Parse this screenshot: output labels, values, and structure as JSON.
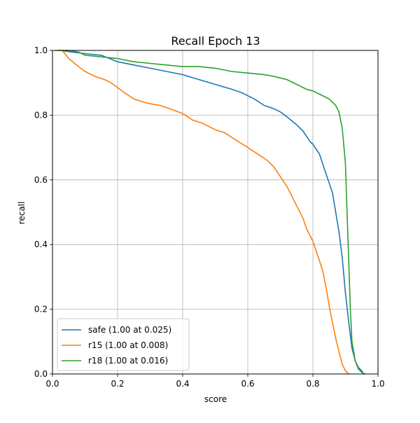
{
  "chart_data": {
    "type": "line",
    "title": "Recall Epoch 13",
    "xlabel": "score",
    "ylabel": "recall",
    "xlim": [
      0.0,
      1.0
    ],
    "ylim": [
      0.0,
      1.0
    ],
    "xticks": [
      "0.0",
      "0.2",
      "0.4",
      "0.6",
      "0.8",
      "1.0"
    ],
    "yticks": [
      "0.0",
      "0.2",
      "0.4",
      "0.6",
      "0.8",
      "1.0"
    ],
    "grid": true,
    "legend_position": "lower-left",
    "series": [
      {
        "name": "safe (1.00 at 0.025)",
        "color": "#1f77b4",
        "points": [
          [
            0.025,
            1.0
          ],
          [
            0.06,
            0.995
          ],
          [
            0.1,
            0.99
          ],
          [
            0.15,
            0.985
          ],
          [
            0.2,
            0.965
          ],
          [
            0.25,
            0.955
          ],
          [
            0.3,
            0.945
          ],
          [
            0.35,
            0.935
          ],
          [
            0.4,
            0.925
          ],
          [
            0.45,
            0.91
          ],
          [
            0.5,
            0.895
          ],
          [
            0.55,
            0.88
          ],
          [
            0.58,
            0.87
          ],
          [
            0.6,
            0.86
          ],
          [
            0.62,
            0.85
          ],
          [
            0.65,
            0.83
          ],
          [
            0.68,
            0.82
          ],
          [
            0.7,
            0.81
          ],
          [
            0.72,
            0.795
          ],
          [
            0.75,
            0.77
          ],
          [
            0.77,
            0.75
          ],
          [
            0.79,
            0.72
          ],
          [
            0.8,
            0.71
          ],
          [
            0.82,
            0.68
          ],
          [
            0.84,
            0.62
          ],
          [
            0.86,
            0.56
          ],
          [
            0.87,
            0.5
          ],
          [
            0.88,
            0.44
          ],
          [
            0.89,
            0.36
          ],
          [
            0.9,
            0.25
          ],
          [
            0.91,
            0.16
          ],
          [
            0.92,
            0.08
          ],
          [
            0.93,
            0.04
          ],
          [
            0.94,
            0.02
          ],
          [
            0.95,
            0.01
          ],
          [
            0.955,
            0.0
          ]
        ]
      },
      {
        "name": "r15 (1.00 at 0.008)",
        "color": "#ff7f0e",
        "points": [
          [
            0.008,
            1.0
          ],
          [
            0.03,
            1.0
          ],
          [
            0.05,
            0.975
          ],
          [
            0.08,
            0.95
          ],
          [
            0.1,
            0.935
          ],
          [
            0.13,
            0.92
          ],
          [
            0.16,
            0.91
          ],
          [
            0.18,
            0.9
          ],
          [
            0.2,
            0.885
          ],
          [
            0.22,
            0.87
          ],
          [
            0.25,
            0.85
          ],
          [
            0.28,
            0.84
          ],
          [
            0.3,
            0.835
          ],
          [
            0.33,
            0.83
          ],
          [
            0.36,
            0.82
          ],
          [
            0.4,
            0.805
          ],
          [
            0.43,
            0.785
          ],
          [
            0.46,
            0.775
          ],
          [
            0.5,
            0.755
          ],
          [
            0.53,
            0.745
          ],
          [
            0.56,
            0.725
          ],
          [
            0.6,
            0.7
          ],
          [
            0.63,
            0.68
          ],
          [
            0.66,
            0.66
          ],
          [
            0.68,
            0.64
          ],
          [
            0.7,
            0.61
          ],
          [
            0.72,
            0.58
          ],
          [
            0.75,
            0.52
          ],
          [
            0.77,
            0.48
          ],
          [
            0.78,
            0.45
          ],
          [
            0.8,
            0.41
          ],
          [
            0.81,
            0.38
          ],
          [
            0.82,
            0.35
          ],
          [
            0.83,
            0.32
          ],
          [
            0.84,
            0.27
          ],
          [
            0.85,
            0.21
          ],
          [
            0.86,
            0.16
          ],
          [
            0.87,
            0.11
          ],
          [
            0.88,
            0.07
          ],
          [
            0.89,
            0.03
          ],
          [
            0.9,
            0.01
          ],
          [
            0.91,
            0.0
          ]
        ]
      },
      {
        "name": "r18 (1.00 at 0.016)",
        "color": "#2ca02c",
        "points": [
          [
            0.016,
            1.0
          ],
          [
            0.05,
            1.0
          ],
          [
            0.08,
            0.995
          ],
          [
            0.1,
            0.985
          ],
          [
            0.15,
            0.98
          ],
          [
            0.2,
            0.975
          ],
          [
            0.25,
            0.965
          ],
          [
            0.3,
            0.96
          ],
          [
            0.35,
            0.955
          ],
          [
            0.4,
            0.95
          ],
          [
            0.45,
            0.95
          ],
          [
            0.5,
            0.945
          ],
          [
            0.55,
            0.935
          ],
          [
            0.6,
            0.93
          ],
          [
            0.65,
            0.925
          ],
          [
            0.68,
            0.92
          ],
          [
            0.7,
            0.915
          ],
          [
            0.72,
            0.91
          ],
          [
            0.75,
            0.895
          ],
          [
            0.78,
            0.88
          ],
          [
            0.8,
            0.875
          ],
          [
            0.82,
            0.865
          ],
          [
            0.84,
            0.855
          ],
          [
            0.85,
            0.85
          ],
          [
            0.86,
            0.84
          ],
          [
            0.87,
            0.83
          ],
          [
            0.88,
            0.81
          ],
          [
            0.89,
            0.76
          ],
          [
            0.9,
            0.65
          ],
          [
            0.905,
            0.5
          ],
          [
            0.91,
            0.35
          ],
          [
            0.915,
            0.2
          ],
          [
            0.92,
            0.1
          ],
          [
            0.93,
            0.04
          ],
          [
            0.94,
            0.015
          ],
          [
            0.95,
            0.005
          ],
          [
            0.96,
            0.0
          ]
        ]
      }
    ]
  }
}
